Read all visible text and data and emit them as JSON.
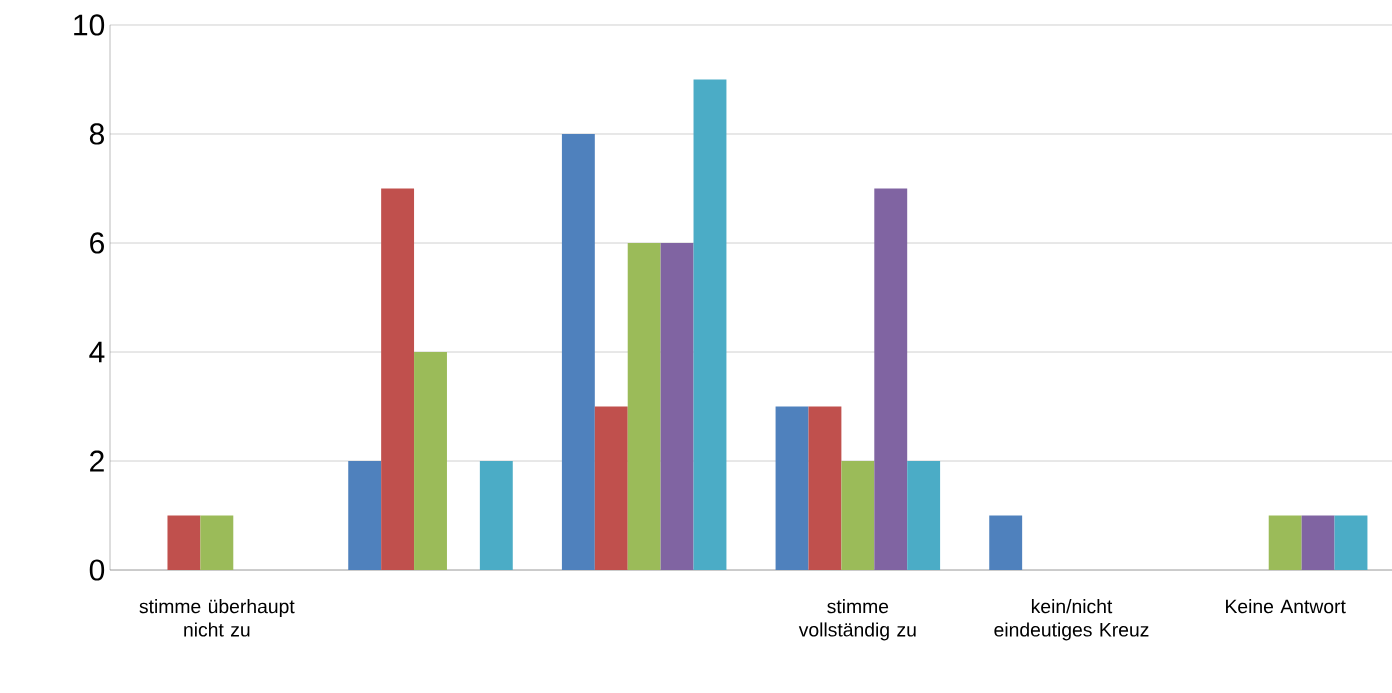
{
  "chart_data": {
    "type": "bar",
    "categories": [
      "stimme überhaupt nicht zu",
      null,
      null,
      "stimme vollständig zu",
      "kein/nicht eindeutiges Kreuz",
      "Keine Antwort"
    ],
    "series": [
      {
        "color": "#4f81bd",
        "values": [
          0,
          2,
          8,
          3,
          1,
          0
        ]
      },
      {
        "color": "#c0504d",
        "values": [
          1,
          7,
          3,
          3,
          0,
          0
        ]
      },
      {
        "color": "#9bbb59",
        "values": [
          1,
          4,
          6,
          2,
          0,
          1
        ]
      },
      {
        "color": "#8064a2",
        "values": [
          0,
          0,
          6,
          7,
          0,
          1
        ]
      },
      {
        "color": "#4bacc6",
        "values": [
          0,
          2,
          9,
          2,
          0,
          1
        ]
      }
    ],
    "ylim": [
      0,
      10
    ],
    "yticks": [
      0,
      2,
      4,
      6,
      8,
      10
    ],
    "grid": "y"
  }
}
